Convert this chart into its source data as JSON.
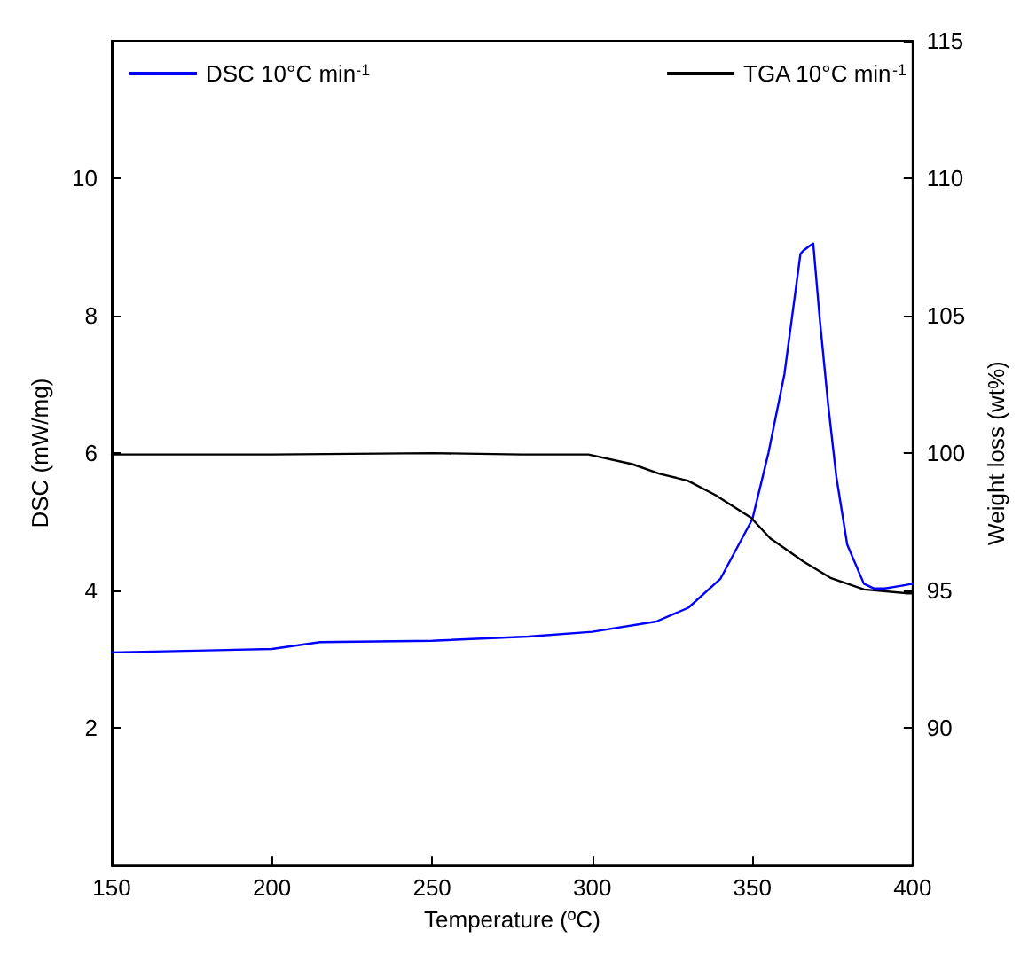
{
  "chart_data": {
    "type": "line",
    "xlabel": "Temperature (ºC)",
    "ylabel": "DSC (mW/mg)",
    "y2label": "Weight loss (wt%)",
    "legend": "top",
    "grid": false,
    "marker": "none",
    "line_style": "solid",
    "xlim": [
      150,
      400
    ],
    "xticks": [
      150,
      200,
      250,
      300,
      350,
      400
    ],
    "ylim": [
      0,
      12
    ],
    "yticks": [
      2,
      4,
      6,
      8,
      10
    ],
    "y2lim": [
      85,
      115
    ],
    "y2ticks": [
      90,
      95,
      100,
      105,
      110,
      115
    ],
    "series": [
      {
        "name": "DSC 10°C min$^{-1}$",
        "color": "#0000ff",
        "x": [
          150,
          200,
          215,
          250,
          280,
          300,
          320,
          330,
          340,
          350,
          355,
          360,
          365,
          366,
          368,
          369,
          371,
          373.6,
          376.2,
          379.6,
          384.8,
          388,
          391.3,
          397.8,
          400
        ],
        "values": [
          3.1,
          3.15,
          3.25,
          3.27,
          3.33,
          3.4,
          3.55,
          3.75,
          4.17,
          5.04,
          6.0,
          7.15,
          8.9,
          8.95,
          9.02,
          9.05,
          7.97,
          6.73,
          5.66,
          4.67,
          4.1,
          4.03,
          4.03,
          4.08,
          4.1
        ]
      },
      {
        "name": "TGA 10°C min$^{-1}$",
        "color": "#000000",
        "axis": "y2",
        "x": [
          150,
          200,
          250,
          278,
          298.8,
          312.5,
          321,
          329.8,
          338.4,
          349.6,
          355.6,
          366,
          374.6,
          384.9,
          398.5,
          400
        ],
        "values": [
          99.95,
          99.95,
          100.0,
          99.95,
          99.95,
          99.6,
          99.25,
          99.0,
          98.48,
          97.65,
          96.9,
          96.05,
          95.45,
          95.04,
          94.9,
          94.9
        ]
      }
    ]
  }
}
